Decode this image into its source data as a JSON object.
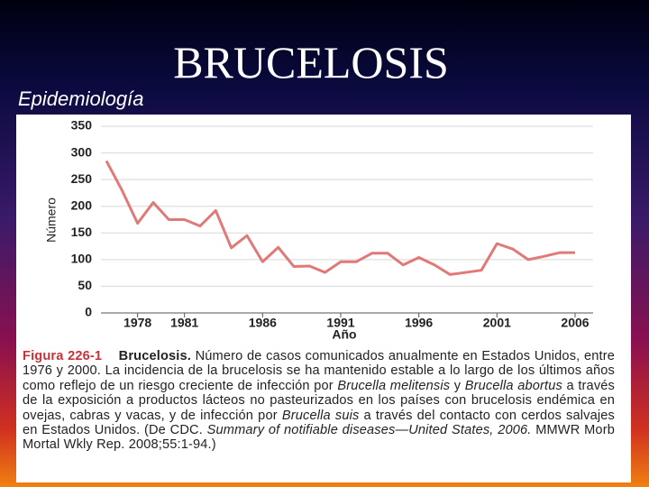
{
  "slide": {
    "title": "BRUCELOSIS",
    "subtitle": "Epidemiología"
  },
  "chart_data": {
    "type": "line",
    "ylabel": "Número",
    "xlabel": "Año",
    "x": [
      1976,
      1977,
      1978,
      1979,
      1980,
      1981,
      1982,
      1983,
      1984,
      1985,
      1986,
      1987,
      1988,
      1989,
      1990,
      1991,
      1992,
      1993,
      1994,
      1995,
      1996,
      1997,
      1998,
      1999,
      2000,
      2001,
      2002,
      2003,
      2004,
      2005,
      2006
    ],
    "series": [
      {
        "name": "Brucelosis",
        "color": "#e07a78",
        "values": [
          285,
          230,
          168,
          207,
          175,
          175,
          163,
          192,
          122,
          145,
          96,
          123,
          87,
          88,
          76,
          96,
          96,
          112,
          112,
          90,
          104,
          90,
          72,
          76,
          80,
          130,
          120,
          100,
          106,
          113,
          113
        ]
      }
    ],
    "xlim": [
      1976,
      2006
    ],
    "xticks": [
      1978,
      1981,
      1986,
      1991,
      1996,
      2001,
      2006
    ],
    "ylim": [
      0,
      350
    ],
    "yticks": [
      0,
      50,
      100,
      150,
      200,
      250,
      300,
      350
    ],
    "grid": true,
    "caption": [
      "Figura 226-1",
      "Brucelosis.",
      "Número de casos comunicados anualmente en Estados Unidos, entre 1976 y 2000. La incidencia de la brucelosis se ha mantenido estable a lo largo de los últimos años como reflejo de un riesgo creciente de infección por",
      "Brucella melitensis",
      "y",
      "Brucella abortus",
      "a través de la exposición a productos lácteos no pasteurizados en los países con brucelosis endémica en ovejas, cabras y vacas, y de infección por",
      "Brucella suis",
      "a través del contacto con cerdos salvajes en Estados Unidos. (De CDC.",
      "Summary of notifiable diseases—United States, 2006.",
      "MMWR Morb Mortal Wkly Rep. 2008;55:1-94.)"
    ]
  }
}
